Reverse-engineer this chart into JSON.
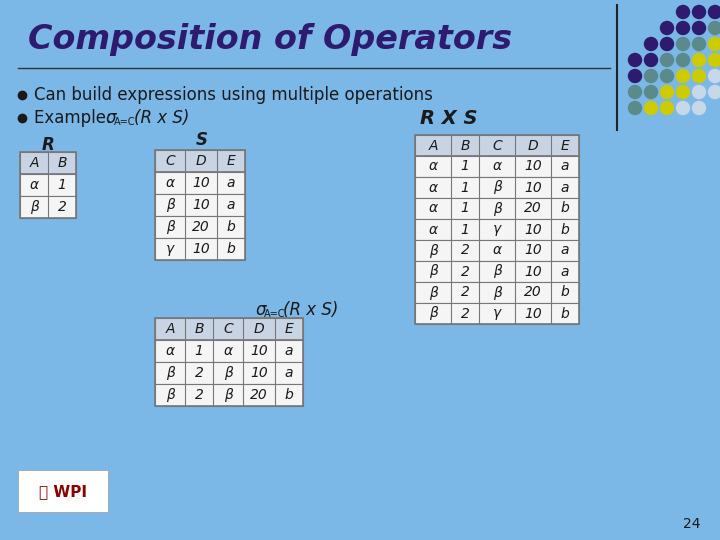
{
  "title": "Composition of Operators",
  "title_color": "#2E1A6E",
  "bg_color": "#7BB8E8",
  "bullet1": "Can build expressions using multiple operations",
  "slide_number": "24",
  "dot_colors": {
    "purple": "#2E1A6E",
    "teal": "#5B8A8A",
    "yellow": "#CCCC00",
    "white": "#C8D8E8"
  },
  "text_color": "#1A1A1A",
  "RXS_label": "R X S",
  "R_label": "R",
  "S_label": "S",
  "sigma_label": "σ",
  "sigma_sub": "A=C",
  "sigma_rest": "(R x S)",
  "dot_grid": [
    [
      "",
      "",
      "",
      "purple",
      "purple",
      "purple"
    ],
    [
      "",
      "",
      "purple",
      "purple",
      "purple",
      "teal"
    ],
    [
      "",
      "purple",
      "purple",
      "teal",
      "teal",
      "yellow"
    ],
    [
      "purple",
      "purple",
      "teal",
      "teal",
      "yellow",
      "yellow"
    ],
    [
      "purple",
      "teal",
      "teal",
      "yellow",
      "yellow",
      "white"
    ],
    [
      "teal",
      "teal",
      "yellow",
      "yellow",
      "white",
      "white"
    ],
    [
      "teal",
      "yellow",
      "yellow",
      "white",
      "white",
      ""
    ]
  ]
}
